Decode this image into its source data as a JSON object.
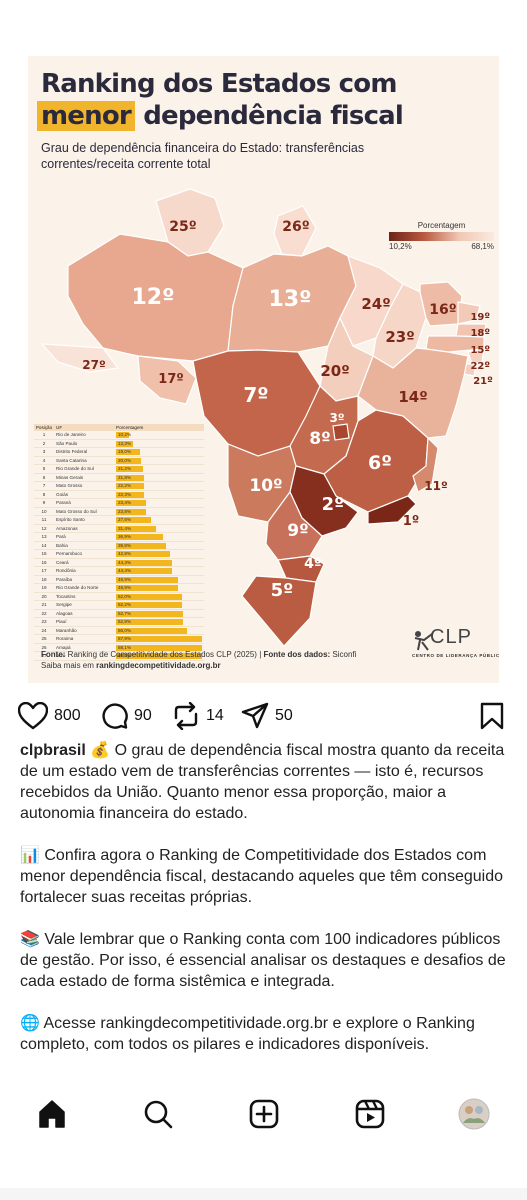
{
  "post": {
    "title_line1": "Ranking dos Estados com",
    "title_highlight": "menor",
    "title_line2": "dependência fiscal",
    "subtitle": "Grau de dependência financeira do Estado: transferências correntes/receita corrente total",
    "legend": {
      "title": "Porcentagem",
      "min": "10,2%",
      "max": "68,1%"
    },
    "states": [
      {
        "label": "25º",
        "color": "#f7d9cb"
      },
      {
        "label": "26º",
        "color": "#f8ddd0"
      },
      {
        "label": "12º",
        "color": "#e7a88f"
      },
      {
        "label": "13º",
        "color": "#e8ae96"
      },
      {
        "label": "24º",
        "color": "#f7d8ca"
      },
      {
        "label": "16º",
        "color": "#eebca6"
      },
      {
        "label": "19º",
        "color": "#f3cab8"
      },
      {
        "label": "18º",
        "color": "#f2c5b2"
      },
      {
        "label": "15º",
        "color": "#edb9a2"
      },
      {
        "label": "22º",
        "color": "#f5d2c2"
      },
      {
        "label": "21º",
        "color": "#f4cfbf"
      },
      {
        "label": "23º",
        "color": "#f6d6c7"
      },
      {
        "label": "27º",
        "color": "#f9e2d7"
      },
      {
        "label": "17º",
        "color": "#f0c0ab"
      },
      {
        "label": "20º",
        "color": "#f4cebd"
      },
      {
        "label": "14º",
        "color": "#e9b39b"
      },
      {
        "label": "7º",
        "color": "#c2654a"
      },
      {
        "label": "3º",
        "color": "#a9462f"
      },
      {
        "label": "8º",
        "color": "#c46a4e"
      },
      {
        "label": "6º",
        "color": "#bd5f44"
      },
      {
        "label": "11º",
        "color": "#d58a6e"
      },
      {
        "label": "10º",
        "color": "#cc7a5d"
      },
      {
        "label": "2º",
        "color": "#862f1e"
      },
      {
        "label": "1º",
        "color": "#7a2717"
      },
      {
        "label": "9º",
        "color": "#c8715a"
      },
      {
        "label": "4º",
        "color": "#b5583f"
      },
      {
        "label": "5º",
        "color": "#ba5c42"
      }
    ],
    "table": {
      "headers": [
        "Posição",
        "UF",
        "Porcentagem"
      ],
      "rows": [
        {
          "pos": "1",
          "uf": "Rio de Janeiro",
          "pct": "10,2%",
          "value": 10.2
        },
        {
          "pos": "2",
          "uf": "São Paulo",
          "pct": "13,3%",
          "value": 13.3
        },
        {
          "pos": "3",
          "uf": "Distrito Federal",
          "pct": "19,0%",
          "value": 19.0
        },
        {
          "pos": "4",
          "uf": "Santa Catarina",
          "pct": "20,0%",
          "value": 20.0
        },
        {
          "pos": "5",
          "uf": "Rio Grande do Sul",
          "pct": "21,2%",
          "value": 21.2
        },
        {
          "pos": "6",
          "uf": "Minas Gerais",
          "pct": "21,8%",
          "value": 21.8
        },
        {
          "pos": "7",
          "uf": "Mato Grosso",
          "pct": "22,2%",
          "value": 22.2
        },
        {
          "pos": "8",
          "uf": "Goiás",
          "pct": "22,3%",
          "value": 22.3
        },
        {
          "pos": "9",
          "uf": "Paraná",
          "pct": "23,4%",
          "value": 23.4
        },
        {
          "pos": "10",
          "uf": "Mato Grosso do Sul",
          "pct": "23,8%",
          "value": 23.8
        },
        {
          "pos": "11",
          "uf": "Espírito Santo",
          "pct": "27,6%",
          "value": 27.6
        },
        {
          "pos": "12",
          "uf": "Amazonas",
          "pct": "31,4%",
          "value": 31.4
        },
        {
          "pos": "13",
          "uf": "Pará",
          "pct": "36,9%",
          "value": 36.9
        },
        {
          "pos": "14",
          "uf": "Bahia",
          "pct": "39,8%",
          "value": 39.8
        },
        {
          "pos": "15",
          "uf": "Pernambuco",
          "pct": "42,8%",
          "value": 42.8
        },
        {
          "pos": "16",
          "uf": "Ceará",
          "pct": "44,3%",
          "value": 44.3
        },
        {
          "pos": "17",
          "uf": "Rondônia",
          "pct": "44,4%",
          "value": 44.4
        },
        {
          "pos": "18",
          "uf": "Paraíba",
          "pct": "48,9%",
          "value": 48.9
        },
        {
          "pos": "19",
          "uf": "Rio Grande do Norte",
          "pct": "48,9%",
          "value": 48.9
        },
        {
          "pos": "20",
          "uf": "Tocantins",
          "pct": "52,0%",
          "value": 52.0
        },
        {
          "pos": "21",
          "uf": "Sergipe",
          "pct": "52,2%",
          "value": 52.2
        },
        {
          "pos": "22",
          "uf": "Alagoas",
          "pct": "52,7%",
          "value": 52.7
        },
        {
          "pos": "23",
          "uf": "Piauí",
          "pct": "52,8%",
          "value": 52.8
        },
        {
          "pos": "24",
          "uf": "Maranhão",
          "pct": "56,0%",
          "value": 56.0
        },
        {
          "pos": "25",
          "uf": "Roraima",
          "pct": "67,9%",
          "value": 67.9
        },
        {
          "pos": "26",
          "uf": "Amapá",
          "pct": "68,1%",
          "value": 68.1
        },
        {
          "pos": "27",
          "uf": "Acre",
          "pct": "68,1%",
          "value": 68.1
        }
      ]
    },
    "source_label": "Fonte:",
    "source_text": "Ranking de Competitividade dos Estados CLP (2025) |",
    "data_source_label": "Fonte dos dados:",
    "data_source": "Siconfi",
    "more_text": "Saiba mais em",
    "more_link": "rankingdecompetitividade.org.br",
    "logo_text": "CLP",
    "logo_subtitle": "CENTRO DE LIDERANÇA PÚBLICA"
  },
  "actions": {
    "likes": "800",
    "comments": "90",
    "reposts": "14",
    "shares": "50"
  },
  "caption": {
    "username": "clpbrasil",
    "p1": "💰 O grau de dependência fiscal mostra quanto da receita de um estado vem de transferências correntes — isto é, recursos recebidos da União. Quanto menor essa proporção, maior a autonomia financeira do estado.",
    "p2": "📊 Confira agora o Ranking de Competitividade dos Estados com menor dependência fiscal, destacando aqueles que têm conseguido fortalecer suas receitas próprias.",
    "p3": "📚 Vale lembrar que o Ranking conta com 100 indicadores públicos de gestão. Por isso, é essencial analisar os destaques e desafios de cada estado de forma sistêmica e integrada.",
    "p4": "🌐 Acesse rankingdecompetitividade.org.br e explore o Ranking completo, com todos os pilares e indicadores disponíveis."
  },
  "nav": {
    "icons": [
      "home-icon",
      "search-icon",
      "create-icon",
      "reels-icon",
      "profile-avatar"
    ]
  }
}
